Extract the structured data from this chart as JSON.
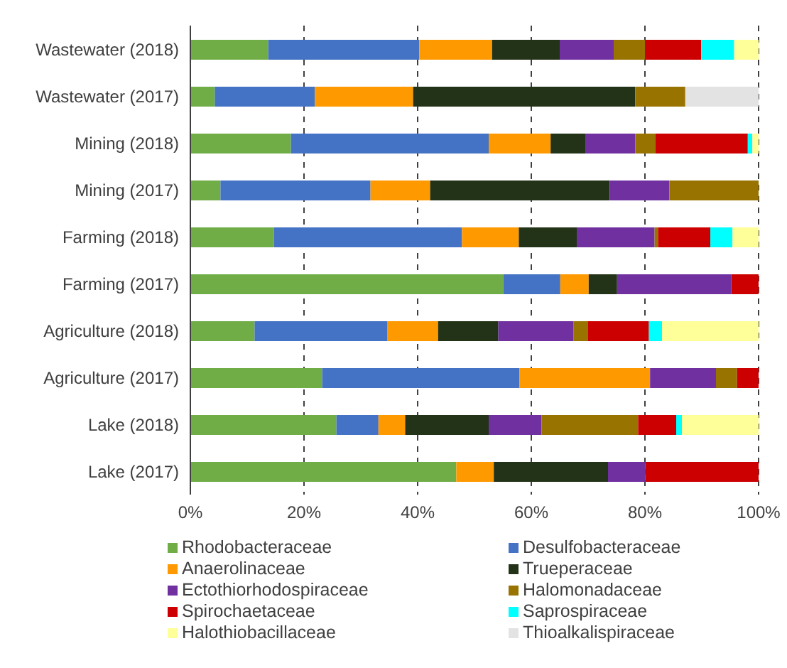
{
  "chart_data": {
    "type": "bar",
    "orientation": "horizontal",
    "stacked": true,
    "categories": [
      "Wastewater (2018)",
      "Wastewater (2017)",
      "Mining (2018)",
      "Mining (2017)",
      "Farming (2018)",
      "Farming (2017)",
      "Agriculture (2018)",
      "Agriculture (2017)",
      "Lake (2018)",
      "Lake (2017)"
    ],
    "series": [
      {
        "name": "Rhodobacteraceae",
        "color": "#70ad47",
        "values": [
          13.7,
          4.3,
          17.7,
          5.3,
          14.7,
          55.1,
          11.3,
          23.2,
          25.7,
          46.8
        ]
      },
      {
        "name": "Desulfobacteraceae",
        "color": "#4472c4",
        "values": [
          26.6,
          17.6,
          34.8,
          26.4,
          33.1,
          10.0,
          23.4,
          34.7,
          7.4,
          0
        ]
      },
      {
        "name": "Anaerolinaceae",
        "color": "#ff9900",
        "values": [
          12.8,
          17.3,
          10.9,
          10.5,
          10.0,
          5.0,
          8.9,
          23.0,
          4.7,
          6.6
        ]
      },
      {
        "name": "Trueperaceae",
        "color": "#233318",
        "values": [
          11.9,
          39.1,
          6.2,
          31.6,
          10.2,
          5.0,
          10.6,
          0,
          14.7,
          20.1
        ]
      },
      {
        "name": "Ectothiorhodospiraceae",
        "color": "#7030a0",
        "values": [
          9.5,
          0,
          8.7,
          10.5,
          13.7,
          20.1,
          13.2,
          11.6,
          9.3,
          6.6
        ]
      },
      {
        "name": "Halomonadaceae",
        "color": "#997300",
        "values": [
          5.5,
          8.8,
          3.5,
          15.7,
          0.6,
          0,
          2.6,
          3.7,
          17.0,
          0
        ]
      },
      {
        "name": "Spirochaetaceae",
        "color": "#cc0000",
        "values": [
          9.9,
          0,
          16.3,
          0,
          9.2,
          4.8,
          10.7,
          3.8,
          6.7,
          19.9
        ]
      },
      {
        "name": "Saprospiraceae",
        "color": "#00ffff",
        "values": [
          5.8,
          0,
          0.8,
          0,
          3.9,
          0,
          2.3,
          0,
          1.0,
          0
        ]
      },
      {
        "name": "Halothiobacillaceae",
        "color": "#ffff99",
        "values": [
          4.3,
          0,
          1.1,
          0,
          4.6,
          0,
          17.0,
          0,
          13.5,
          0
        ]
      },
      {
        "name": "Thioalkalispiraceae",
        "color": "#e3e3e3",
        "values": [
          0,
          12.9,
          0,
          0,
          0,
          0,
          0,
          0,
          0,
          0
        ]
      }
    ],
    "xlim": [
      0,
      100
    ],
    "xticks": [
      {
        "value": 0,
        "label": "0%"
      },
      {
        "value": 20,
        "label": "20%"
      },
      {
        "value": 40,
        "label": "40%"
      },
      {
        "value": 60,
        "label": "60%"
      },
      {
        "value": 80,
        "label": "80%"
      },
      {
        "value": 100,
        "label": "100%"
      }
    ],
    "grid": "x",
    "legend": "bottom"
  }
}
